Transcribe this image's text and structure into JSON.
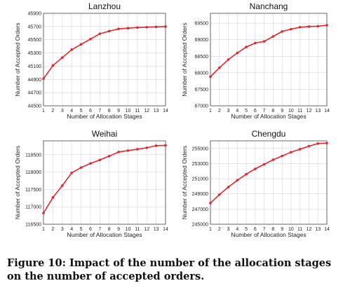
{
  "caption": "Figure 10: Impact of the number of the allocation stages on the number of accepted orders.",
  "colors": {
    "series": "#e0262f",
    "grid": "#d6d6d6",
    "frame": "#444444"
  },
  "chart_data": [
    {
      "type": "line",
      "title": "Lanzhou",
      "xlabel": "Number of Allocation Stages",
      "ylabel": "Number of Accepted Orders",
      "x": [
        1,
        2,
        3,
        4,
        5,
        6,
        7,
        8,
        9,
        10,
        11,
        12,
        13,
        14
      ],
      "values": [
        44910,
        45110,
        45230,
        45350,
        45430,
        45510,
        45590,
        45630,
        45665,
        45675,
        45685,
        45690,
        45695,
        45700
      ],
      "xlim": [
        1,
        14
      ],
      "ylim": [
        44500,
        45900
      ],
      "yticks": [
        44500,
        44700,
        44900,
        45100,
        45300,
        45500,
        45700,
        45900
      ],
      "grid": true
    },
    {
      "type": "line",
      "title": "Nanchang",
      "xlabel": "Number of Allocation Stages",
      "ylabel": "Number of Accepted Orders",
      "x": [
        1,
        2,
        3,
        4,
        5,
        6,
        7,
        8,
        9,
        10,
        11,
        12,
        13,
        14
      ],
      "values": [
        67880,
        68150,
        68400,
        68600,
        68780,
        68900,
        68950,
        69100,
        69250,
        69320,
        69380,
        69400,
        69410,
        69440
      ],
      "xlim": [
        1,
        14
      ],
      "ylim": [
        67000,
        69800
      ],
      "yticks": [
        67000,
        67500,
        68000,
        68500,
        69000,
        69500
      ],
      "grid": true
    },
    {
      "type": "line",
      "title": "Weihai",
      "xlabel": "Number of Allocation Stages",
      "ylabel": "Number of Accepted Orders",
      "x": [
        1,
        2,
        3,
        4,
        5,
        6,
        7,
        8,
        9,
        10,
        11,
        12,
        13,
        14
      ],
      "values": [
        116820,
        117270,
        117610,
        117980,
        118130,
        118250,
        118350,
        118460,
        118580,
        118620,
        118660,
        118700,
        118760,
        118770
      ],
      "xlim": [
        1,
        14
      ],
      "ylim": [
        116500,
        118900
      ],
      "yticks": [
        116500,
        117000,
        117500,
        118000,
        118500
      ],
      "grid": true
    },
    {
      "type": "line",
      "title": "Chengdu",
      "xlabel": "Number of Allocation Stages",
      "ylabel": "Number of Accepted Orders",
      "x": [
        1,
        2,
        3,
        4,
        5,
        6,
        7,
        8,
        9,
        10,
        11,
        12,
        13,
        14
      ],
      "values": [
        247800,
        248900,
        249900,
        250800,
        251600,
        252300,
        252900,
        253500,
        254000,
        254500,
        254900,
        255300,
        255650,
        255700
      ],
      "xlim": [
        1,
        14
      ],
      "ylim": [
        245000,
        256000
      ],
      "yticks": [
        245000,
        247000,
        249000,
        251000,
        253000,
        255000
      ],
      "grid": true
    }
  ]
}
